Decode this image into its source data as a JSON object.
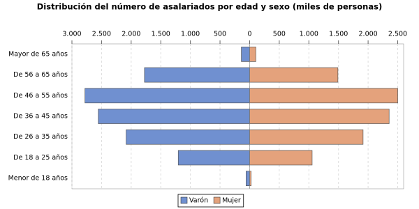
{
  "chart_data": {
    "type": "bar",
    "orientation": "horizontal",
    "title": "Distribución del número de asalariados por edad y sexo (miles de personas)",
    "categories": [
      "Mayor de 65 años",
      "De 56 a 65 años",
      "De 46 a 55 años",
      "De 36 a 45 años",
      "De 26 a 35 años",
      "De 18 a 25 años",
      "Menor de 18 años"
    ],
    "series": [
      {
        "name": "Varón",
        "color": "#7090d0",
        "values": [
          -140,
          -1775,
          -2780,
          -2555,
          -2085,
          -1205,
          -60
        ]
      },
      {
        "name": "Mujer",
        "color": "#e4a27c",
        "values": [
          105,
          1490,
          2500,
          2355,
          1915,
          1055,
          25
        ]
      }
    ],
    "xlim": [
      -3000,
      2600
    ],
    "xticks": [
      {
        "value": -3000,
        "label": "3.000"
      },
      {
        "value": -2500,
        "label": "2.500"
      },
      {
        "value": -2000,
        "label": "2.000"
      },
      {
        "value": -1500,
        "label": "1.500"
      },
      {
        "value": -1000,
        "label": "1.000"
      },
      {
        "value": -500,
        "label": "500"
      },
      0,
      500,
      {
        "value": 1000,
        "label": "1.000"
      },
      {
        "value": 1500,
        "label": "1.500"
      },
      {
        "value": 2000,
        "label": "2.000"
      },
      {
        "value": 2500,
        "label": "2.500"
      }
    ],
    "grid": true,
    "legend": "bottom"
  }
}
